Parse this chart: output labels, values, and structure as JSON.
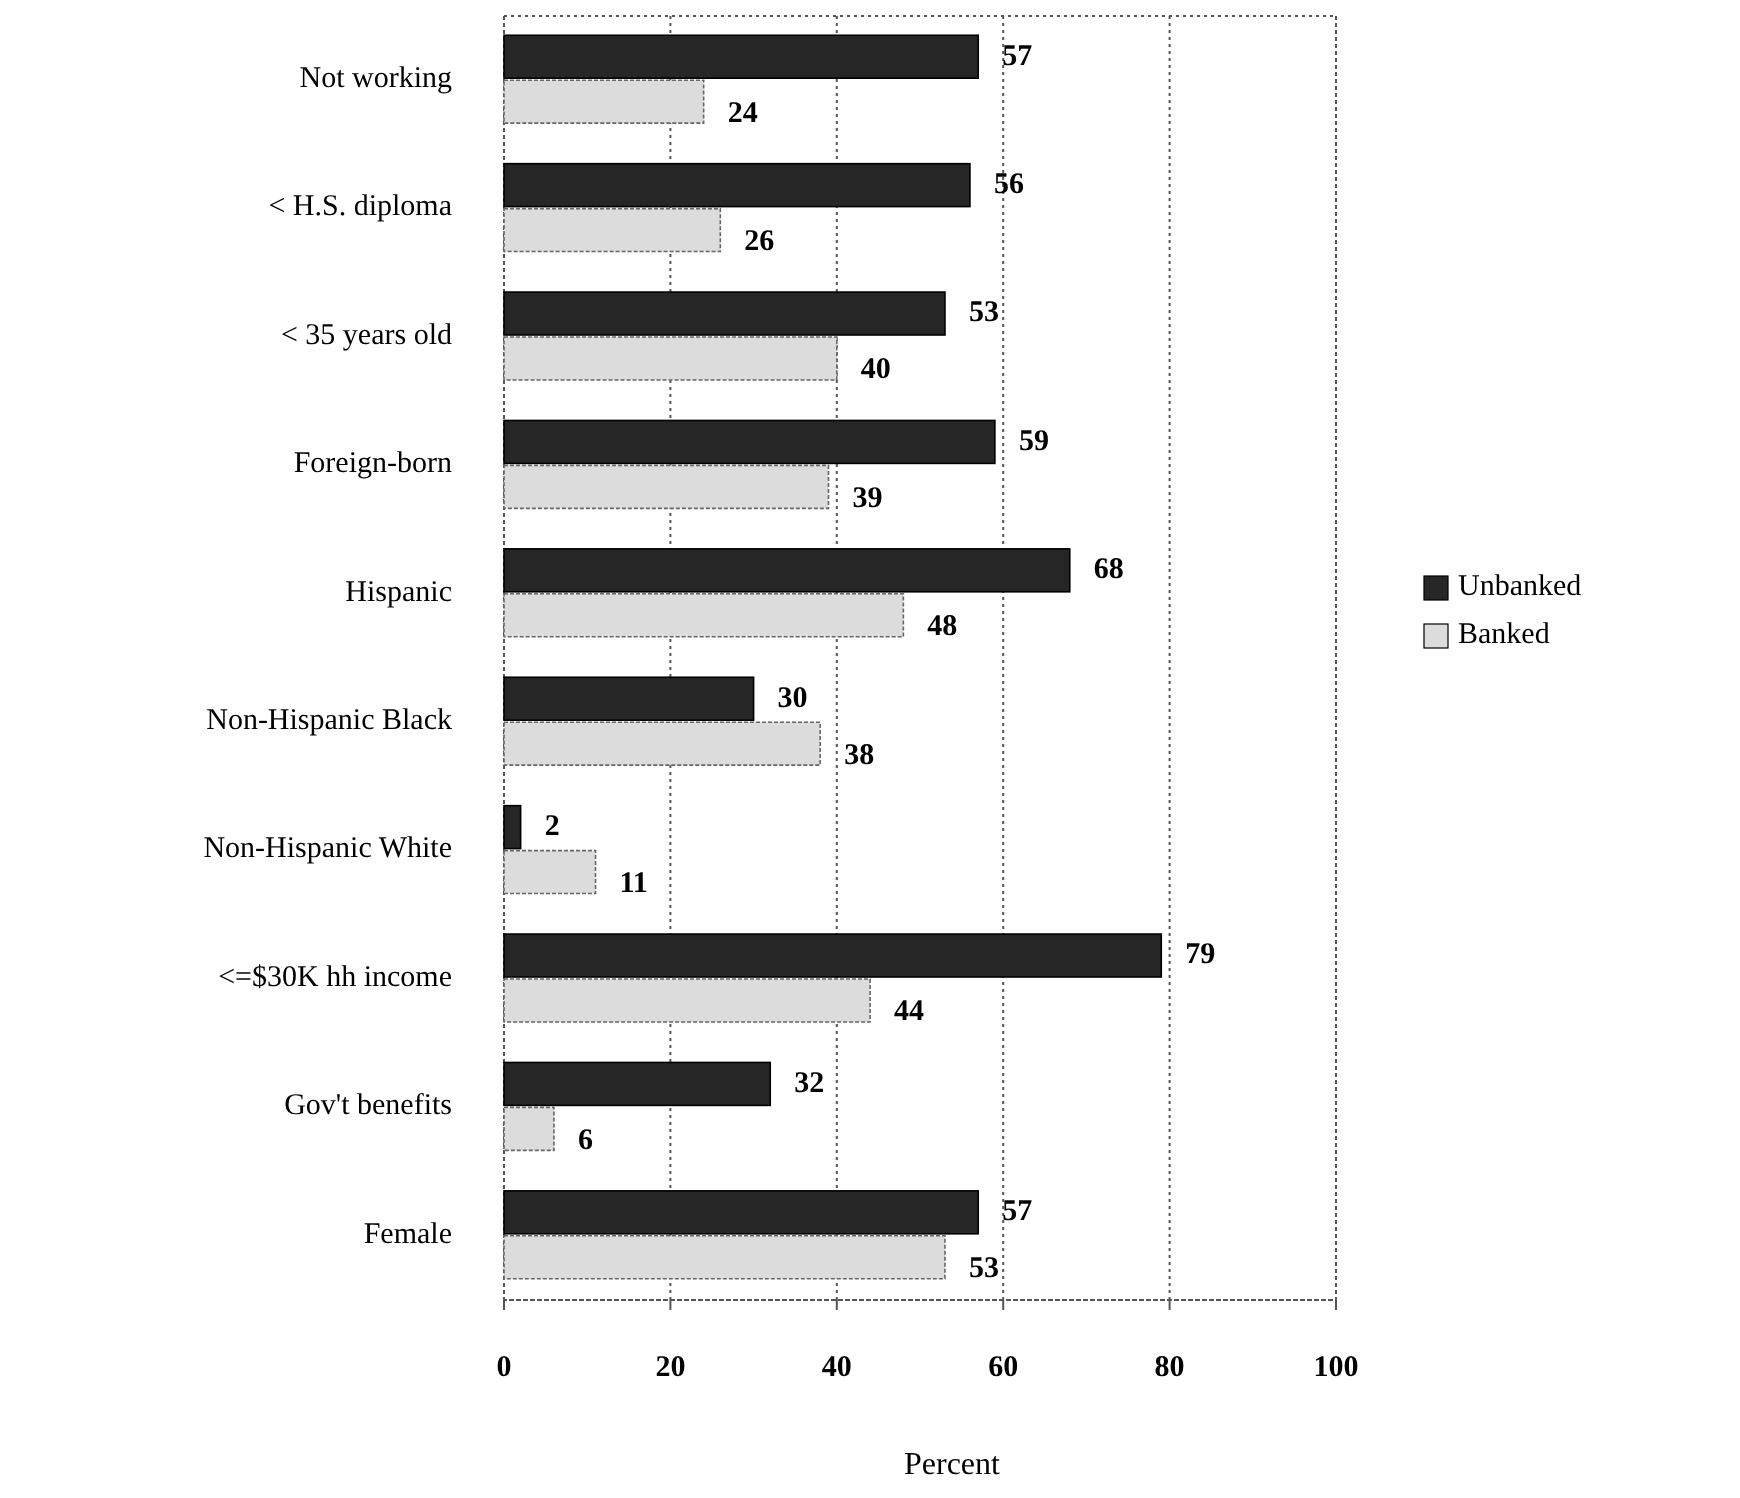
{
  "chart_data": {
    "type": "bar",
    "orientation": "horizontal",
    "xlabel": "Percent",
    "categories": [
      "Not working",
      "< H.S. diploma",
      "< 35 years old",
      "Foreign-born",
      "Hispanic",
      "Non-Hispanic Black",
      "Non-Hispanic White",
      "<=$30K hh income",
      "Gov't benefits",
      "Female"
    ],
    "series": [
      {
        "name": "Unbanked",
        "color": "#262626",
        "values": [
          57,
          56,
          53,
          59,
          68,
          30,
          2,
          79,
          32,
          57
        ]
      },
      {
        "name": "Banked",
        "color": "#dcdcdc",
        "values": [
          24,
          26,
          40,
          39,
          48,
          38,
          11,
          44,
          6,
          53
        ]
      }
    ],
    "xlim": [
      0,
      100
    ],
    "xticks": [
      0,
      20,
      40,
      60,
      80,
      100
    ],
    "grid": "x",
    "legend": "right",
    "data_labels": true
  }
}
